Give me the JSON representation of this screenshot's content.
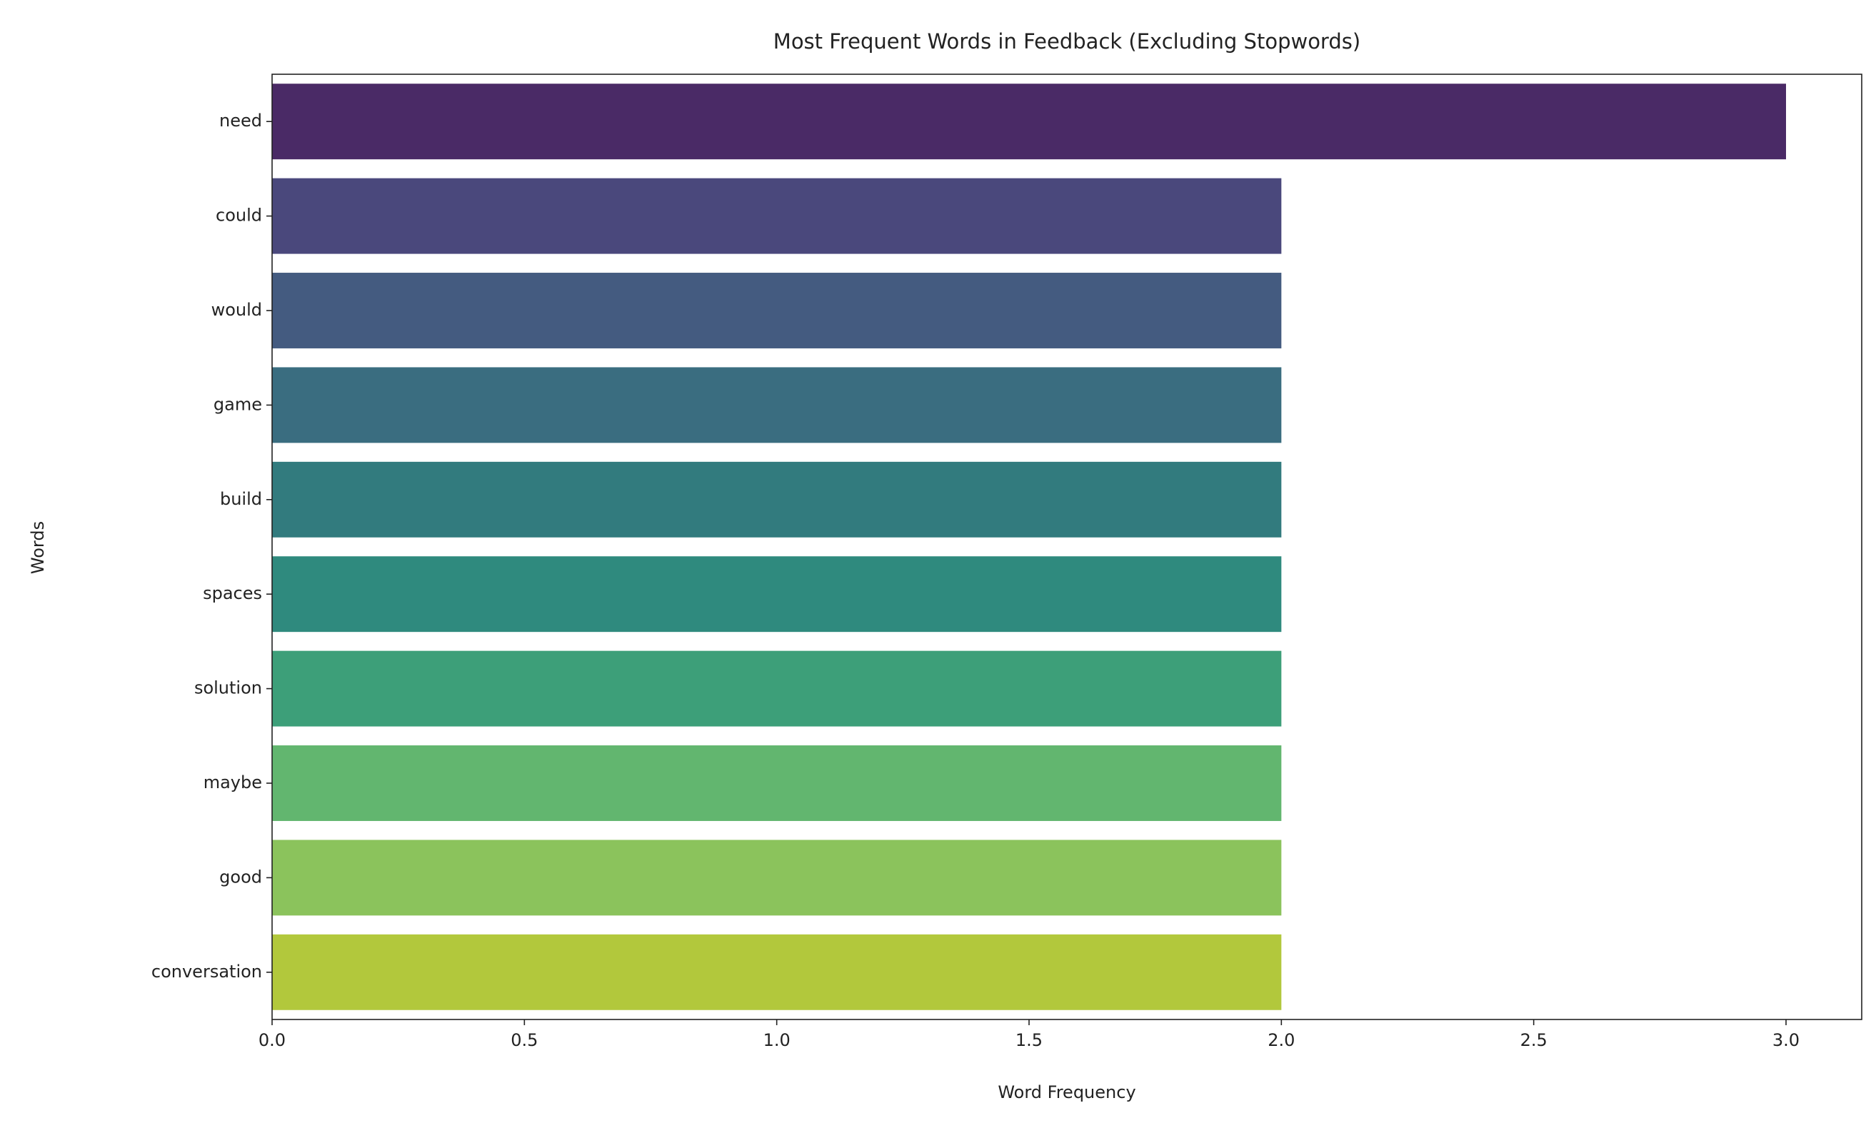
{
  "chart_data": {
    "type": "barh",
    "title": "Most Frequent Words in Feedback (Excluding Stopwords)",
    "x_label": "Word Frequency",
    "y_label": "Words",
    "categories": [
      "need",
      "could",
      "would",
      "game",
      "build",
      "spaces",
      "solution",
      "maybe",
      "good",
      "conversation"
    ],
    "values": [
      3,
      2,
      2,
      2,
      2,
      2,
      2,
      2,
      2,
      2
    ],
    "colors": [
      "#4a2a66",
      "#4a487c",
      "#445b80",
      "#3a6d80",
      "#327b7e",
      "#2f8a7e",
      "#3d9f79",
      "#62b66f",
      "#8bc35c",
      "#b2c83c"
    ],
    "xlim": [
      0,
      3.15
    ],
    "xticks": [
      {
        "value": 0,
        "label": "0.0"
      },
      0.5,
      {
        "value": 1,
        "label": "1.0"
      },
      1.5,
      {
        "value": 2,
        "label": "2.0"
      },
      2.5,
      {
        "value": 3,
        "label": "3.0"
      }
    ],
    "grid": false
  }
}
